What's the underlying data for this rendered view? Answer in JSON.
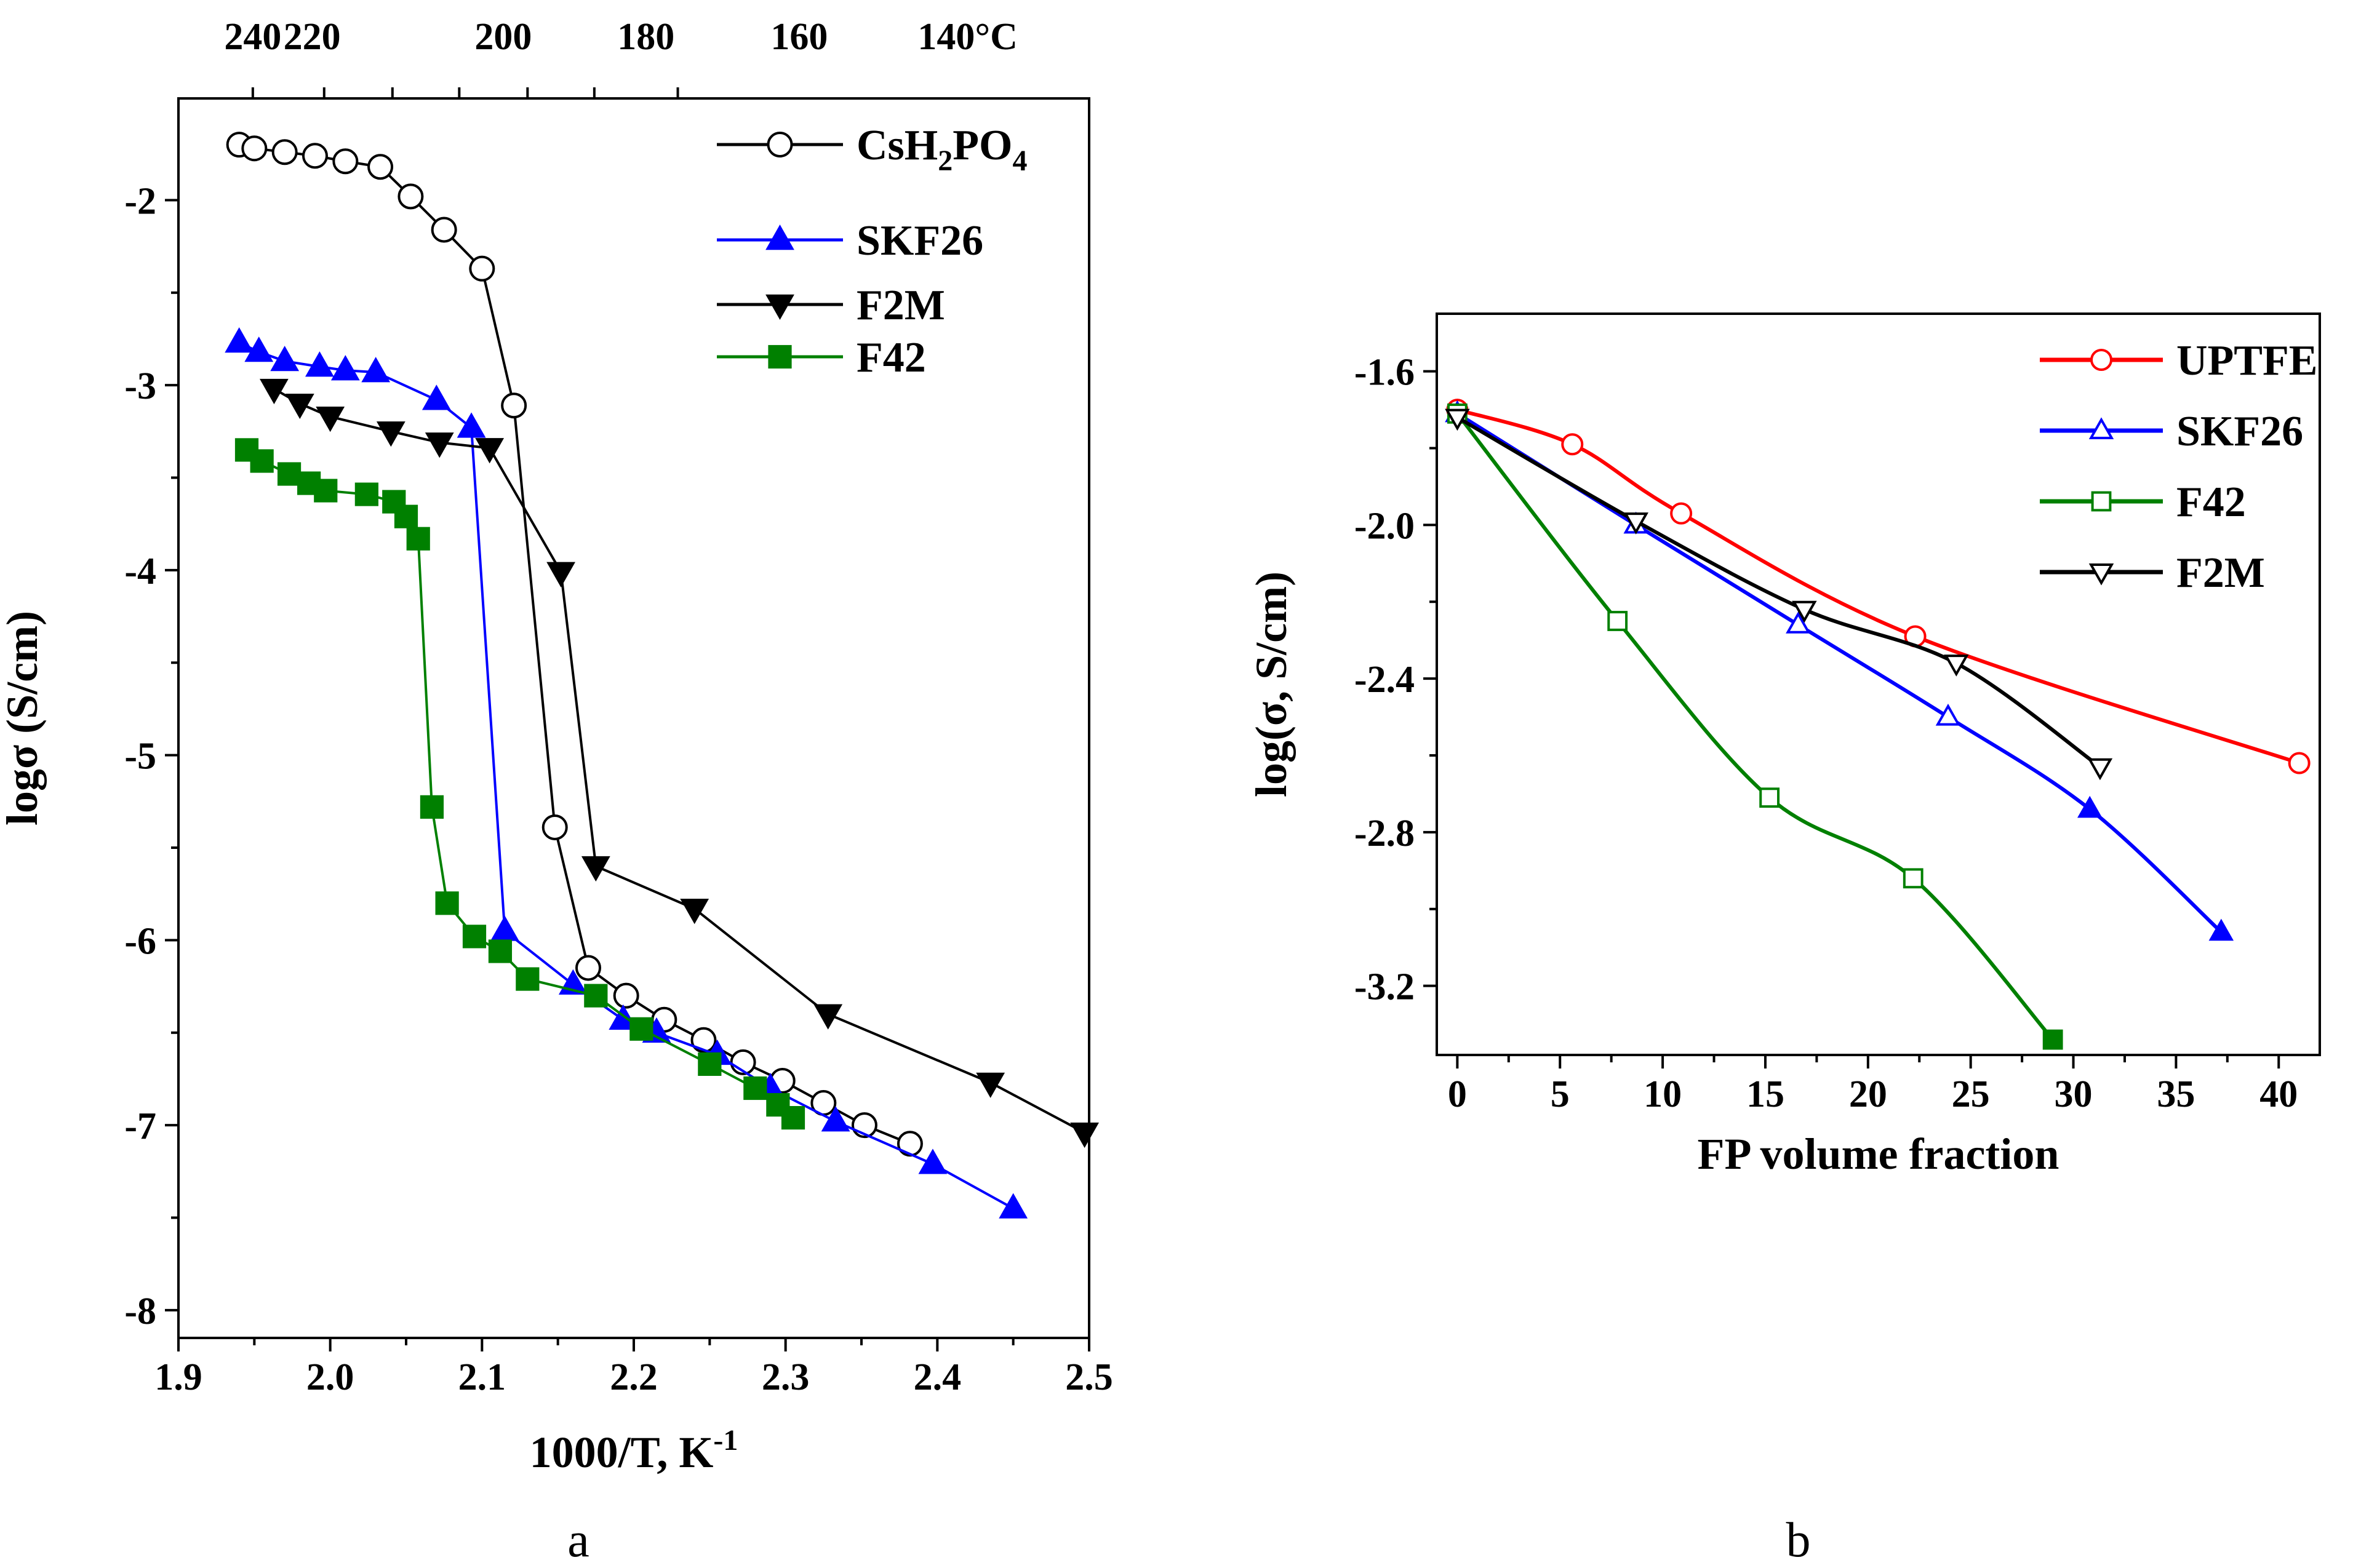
{
  "chart_data": [
    {
      "type": "line",
      "panel_label": "a",
      "xlabel": "1000/T, K",
      "xlabel_sup": "-1",
      "ylabel": "logσ (S/cm)",
      "xlim": [
        1.9,
        2.5
      ],
      "ylim": [
        -8.15,
        -1.45
      ],
      "x_ticks": [
        "1.9",
        "2.0",
        "2.1",
        "2.2",
        "2.3",
        "2.4",
        "2.5"
      ],
      "x_tick_values": [
        1.9,
        2.0,
        2.1,
        2.2,
        2.3,
        2.4,
        2.5
      ],
      "y_ticks": [
        "-2",
        "-3",
        "-4",
        "-5",
        "-6",
        "-7",
        "-8"
      ],
      "y_tick_values": [
        -2,
        -3,
        -4,
        -5,
        -6,
        -7,
        -8
      ],
      "top_axis": {
        "ticks": [
          "240",
          "220",
          "200",
          "180",
          "160",
          "140°C"
        ],
        "tick_x_values": [
          1.949,
          1.988,
          2.114,
          2.208,
          2.309,
          2.42
        ],
        "label_x_values": [
          1.949,
          1.996,
          2.041,
          2.085,
          2.13,
          2.174,
          2.229
        ]
      },
      "legend_position": "top-right",
      "series": [
        {
          "name": "CsH2PO4",
          "legend_main": "CsH",
          "legend_sub1": "2",
          "legend_mid": "PO",
          "legend_sub2": "4",
          "color": "#000000",
          "marker": "circle-open",
          "x": [
            1.94,
            1.95,
            1.97,
            1.99,
            2.01,
            2.033,
            2.053,
            2.075,
            2.1,
            2.121,
            2.148,
            2.17,
            2.195,
            2.22,
            2.246,
            2.272,
            2.298,
            2.325,
            2.352,
            2.382
          ],
          "y": [
            -1.7,
            -1.72,
            -1.74,
            -1.76,
            -1.79,
            -1.82,
            -1.98,
            -2.16,
            -2.37,
            -3.11,
            -5.39,
            -6.15,
            -6.3,
            -6.43,
            -6.54,
            -6.66,
            -6.76,
            -6.88,
            -7.0,
            -7.1
          ]
        },
        {
          "name": "SKF26",
          "color": "#0000ff",
          "marker": "triangle-up-filled",
          "x": [
            1.94,
            1.953,
            1.97,
            1.993,
            2.01,
            2.03,
            2.07,
            2.093,
            2.115,
            2.16,
            2.193,
            2.215,
            2.255,
            2.29,
            2.333,
            2.397,
            2.45
          ],
          "y": [
            -2.77,
            -2.82,
            -2.87,
            -2.9,
            -2.92,
            -2.93,
            -3.08,
            -3.23,
            -5.95,
            -6.24,
            -6.43,
            -6.5,
            -6.62,
            -6.8,
            -6.98,
            -7.21,
            -7.45
          ]
        },
        {
          "name": "F2M",
          "color": "#000000",
          "marker": "triangle-down-filled",
          "x": [
            1.963,
            1.98,
            2.0,
            2.04,
            2.072,
            2.105,
            2.152,
            2.175,
            2.24,
            2.328,
            2.435,
            2.497
          ],
          "y": [
            -3.02,
            -3.1,
            -3.17,
            -3.25,
            -3.31,
            -3.34,
            -4.01,
            -5.6,
            -5.83,
            -6.4,
            -6.77,
            -7.04
          ]
        },
        {
          "name": "F42",
          "color": "#008000",
          "marker": "square-filled",
          "x": [
            1.945,
            1.955,
            1.973,
            1.986,
            1.997,
            2.024,
            2.042,
            2.05,
            2.058,
            2.067,
            2.077,
            2.095,
            2.112,
            2.13,
            2.175,
            2.205,
            2.25,
            2.28,
            2.295,
            2.305
          ],
          "y": [
            -3.35,
            -3.41,
            -3.48,
            -3.53,
            -3.57,
            -3.59,
            -3.63,
            -3.71,
            -3.83,
            -5.28,
            -5.8,
            -5.98,
            -6.06,
            -6.21,
            -6.3,
            -6.48,
            -6.67,
            -6.8,
            -6.89,
            -6.96
          ]
        }
      ]
    },
    {
      "type": "line",
      "panel_label": "b",
      "xlabel": "FP volume fraction",
      "ylabel": "log(σ, S/cm)",
      "xlim": [
        -1,
        42
      ],
      "ylim": [
        -3.38,
        -1.45
      ],
      "x_ticks": [
        "0",
        "5",
        "10",
        "15",
        "20",
        "25",
        "30",
        "35",
        "40"
      ],
      "x_tick_values": [
        0,
        5,
        10,
        15,
        20,
        25,
        30,
        35,
        40
      ],
      "y_ticks": [
        "-1.6",
        "-2.0",
        "-2.4",
        "-2.8",
        "-3.2"
      ],
      "y_tick_values": [
        -1.6,
        -2.0,
        -2.4,
        -2.8,
        -3.2
      ],
      "legend_position": "top-right",
      "series": [
        {
          "name": "UPTFE",
          "color": "#ff0000",
          "marker": "circle-open",
          "x": [
            0,
            5.6,
            10.9,
            22.3,
            41
          ],
          "y": [
            -1.7,
            -1.79,
            -1.97,
            -2.29,
            -2.62
          ]
        },
        {
          "name": "SKF26",
          "color": "#0000ff",
          "marker": "triangle-up-open",
          "filled_last": 2,
          "x": [
            0,
            8.7,
            16.6,
            23.9,
            30.8,
            37.2
          ],
          "y": [
            -1.71,
            -2.0,
            -2.26,
            -2.5,
            -2.74,
            -3.06
          ]
        },
        {
          "name": "F42",
          "color": "#008000",
          "marker": "square-open",
          "filled_last": 1,
          "x": [
            0,
            7.8,
            15.2,
            22.2,
            29
          ],
          "y": [
            -1.71,
            -2.25,
            -2.71,
            -2.92,
            -3.34
          ]
        },
        {
          "name": "F2M",
          "color": "#000000",
          "marker": "triangle-down-open",
          "x": [
            0,
            8.7,
            16.9,
            24.3,
            31.3
          ],
          "y": [
            -1.72,
            -1.99,
            -2.22,
            -2.36,
            -2.63
          ]
        }
      ]
    }
  ]
}
